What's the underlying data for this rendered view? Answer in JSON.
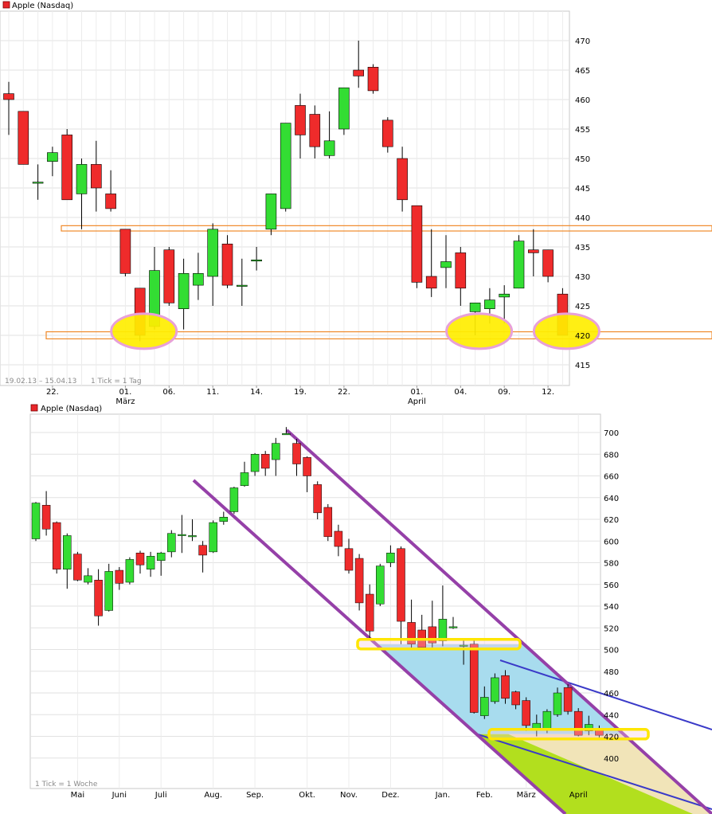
{
  "chart_data": [
    {
      "type": "candlestick",
      "legend": {
        "label": "Apple (Nasdaq)",
        "color": "#e8262a"
      },
      "footer": {
        "range": "19.02.13 – 15.04.13",
        "tick": "1 Tick = 1 Tag"
      },
      "ylim": [
        414,
        473
      ],
      "yticks": [
        415,
        420,
        425,
        430,
        435,
        440,
        445,
        450,
        455,
        460,
        465,
        470
      ],
      "xtick_labels": [
        {
          "index": 3,
          "label": "22.",
          "sub": ""
        },
        {
          "index": 8,
          "label": "01.",
          "sub": "März"
        },
        {
          "index": 11,
          "label": "06.",
          "sub": ""
        },
        {
          "index": 14,
          "label": "11.",
          "sub": ""
        },
        {
          "index": 17,
          "label": "14.",
          "sub": ""
        },
        {
          "index": 20,
          "label": "19.",
          "sub": ""
        },
        {
          "index": 23,
          "label": "22.",
          "sub": ""
        },
        {
          "index": 28,
          "label": "01.",
          "sub": "April"
        },
        {
          "index": 31,
          "label": "04.",
          "sub": ""
        },
        {
          "index": 34,
          "label": "09.",
          "sub": ""
        },
        {
          "index": 37,
          "label": "12.",
          "sub": ""
        }
      ],
      "candles": [
        {
          "o": 461,
          "c": 460,
          "h": 463,
          "l": 454
        },
        {
          "o": 458,
          "c": 449,
          "h": 458,
          "l": 449
        },
        {
          "o": 446,
          "c": 446,
          "h": 449,
          "l": 443
        },
        {
          "o": 449.5,
          "c": 451,
          "h": 452,
          "l": 447
        },
        {
          "o": 454,
          "c": 443,
          "h": 455,
          "l": 443
        },
        {
          "o": 444,
          "c": 449,
          "h": 450,
          "l": 438
        },
        {
          "o": 449,
          "c": 445,
          "h": 453,
          "l": 441
        },
        {
          "o": 444,
          "c": 441.5,
          "h": 448,
          "l": 441
        },
        {
          "o": 438,
          "c": 430.5,
          "h": 438,
          "l": 430
        },
        {
          "o": 428,
          "c": 420,
          "h": 428,
          "l": 419
        },
        {
          "o": 421.5,
          "c": 431,
          "h": 435,
          "l": 421
        },
        {
          "o": 434.5,
          "c": 425.5,
          "h": 435,
          "l": 425
        },
        {
          "o": 424.5,
          "c": 430.5,
          "h": 433,
          "l": 421
        },
        {
          "o": 428.5,
          "c": 430.5,
          "h": 434,
          "l": 426
        },
        {
          "o": 430,
          "c": 438,
          "h": 439,
          "l": 425
        },
        {
          "o": 435.5,
          "c": 428.5,
          "h": 437,
          "l": 428
        },
        {
          "o": 428.5,
          "c": 428.5,
          "h": 433,
          "l": 425
        },
        {
          "o": 432.8,
          "c": 432.8,
          "h": 435,
          "l": 431
        },
        {
          "o": 438,
          "c": 444,
          "h": 444,
          "l": 437
        },
        {
          "o": 441.5,
          "c": 456,
          "h": 456,
          "l": 441
        },
        {
          "o": 459,
          "c": 454,
          "h": 461,
          "l": 450
        },
        {
          "o": 457.5,
          "c": 452,
          "h": 459,
          "l": 450
        },
        {
          "o": 450.5,
          "c": 453,
          "h": 458,
          "l": 450
        },
        {
          "o": 455,
          "c": 462,
          "h": 462,
          "l": 454
        },
        {
          "o": 465,
          "c": 464,
          "h": 470,
          "l": 462
        },
        {
          "o": 465.5,
          "c": 461.5,
          "h": 466,
          "l": 461
        },
        {
          "o": 456.5,
          "c": 452,
          "h": 457,
          "l": 451
        },
        {
          "o": 450,
          "c": 443,
          "h": 452,
          "l": 441
        },
        {
          "o": 442,
          "c": 429,
          "h": 442,
          "l": 428
        },
        {
          "o": 430,
          "c": 428,
          "h": 438,
          "l": 426.5
        },
        {
          "o": 431.5,
          "c": 432.5,
          "h": 437,
          "l": 428
        },
        {
          "o": 434,
          "c": 428,
          "h": 435,
          "l": 425
        },
        {
          "o": 424,
          "c": 425.5,
          "h": 425.5,
          "l": 420
        },
        {
          "o": 424.5,
          "c": 426,
          "h": 428,
          "l": 422
        },
        {
          "o": 426.5,
          "c": 427,
          "h": 428.5,
          "l": 422
        },
        {
          "o": 428,
          "c": 436,
          "h": 437,
          "l": 428
        },
        {
          "o": 434.5,
          "c": 434,
          "h": 438,
          "l": 430
        },
        {
          "o": 434.5,
          "c": 430,
          "h": 434.5,
          "l": 429
        },
        {
          "o": 427,
          "c": 420,
          "h": 428,
          "l": 420
        }
      ],
      "resistance_zone": [
        437.7,
        438.6
      ],
      "support_zone": [
        419.4,
        420.6
      ],
      "highlight_circles": [
        {
          "index": 9,
          "value": 420.7
        },
        {
          "index": 32,
          "value": 420.7
        },
        {
          "index": 38,
          "value": 420.7
        }
      ]
    },
    {
      "type": "candlestick",
      "legend": {
        "label": "Apple (Nasdaq)",
        "color": "#e8262a"
      },
      "footer": {
        "range": "",
        "tick": "1 Tick = 1 Woche"
      },
      "ylim": [
        383,
        710
      ],
      "yticks": [
        400,
        420,
        440,
        460,
        480,
        500,
        520,
        540,
        560,
        580,
        600,
        620,
        640,
        660,
        680,
        700
      ],
      "xtick_labels": [
        {
          "index": 4,
          "label": "Mai"
        },
        {
          "index": 8,
          "label": "Juni"
        },
        {
          "index": 12,
          "label": "Juli"
        },
        {
          "index": 17,
          "label": "Aug."
        },
        {
          "index": 21,
          "label": "Sep."
        },
        {
          "index": 26,
          "label": "Okt."
        },
        {
          "index": 30,
          "label": "Nov."
        },
        {
          "index": 34,
          "label": "Dez."
        },
        {
          "index": 39,
          "label": "Jan."
        },
        {
          "index": 43,
          "label": "Feb."
        },
        {
          "index": 47,
          "label": "März"
        },
        {
          "index": 52,
          "label": "April"
        }
      ],
      "candles": [
        {
          "o": 602,
          "c": 635,
          "h": 636,
          "l": 600
        },
        {
          "o": 633,
          "c": 611,
          "h": 646,
          "l": 605
        },
        {
          "o": 617,
          "c": 574,
          "h": 618,
          "l": 570
        },
        {
          "o": 574,
          "c": 605,
          "h": 607,
          "l": 556
        },
        {
          "o": 588,
          "c": 564,
          "h": 590,
          "l": 563
        },
        {
          "o": 562,
          "c": 568,
          "h": 575,
          "l": 560
        },
        {
          "o": 564,
          "c": 531,
          "h": 574,
          "l": 522
        },
        {
          "o": 536,
          "c": 572,
          "h": 579,
          "l": 535
        },
        {
          "o": 573,
          "c": 561,
          "h": 576,
          "l": 555
        },
        {
          "o": 562,
          "c": 583,
          "h": 585,
          "l": 560
        },
        {
          "o": 589,
          "c": 578,
          "h": 591,
          "l": 570
        },
        {
          "o": 574,
          "c": 586,
          "h": 590,
          "l": 567
        },
        {
          "o": 582,
          "c": 589,
          "h": 590,
          "l": 568
        },
        {
          "o": 590,
          "c": 607,
          "h": 610,
          "l": 585
        },
        {
          "o": 606,
          "c": 606,
          "h": 624,
          "l": 589
        },
        {
          "o": 605,
          "c": 605,
          "h": 620,
          "l": 600
        },
        {
          "o": 596,
          "c": 587,
          "h": 600,
          "l": 571
        },
        {
          "o": 590,
          "c": 617,
          "h": 619,
          "l": 589
        },
        {
          "o": 618,
          "c": 622,
          "h": 627,
          "l": 615
        },
        {
          "o": 627,
          "c": 649,
          "h": 650,
          "l": 625
        },
        {
          "o": 651,
          "c": 663,
          "h": 673,
          "l": 650
        },
        {
          "o": 664,
          "c": 680,
          "h": 681,
          "l": 660
        },
        {
          "o": 680,
          "c": 667,
          "h": 683,
          "l": 660
        },
        {
          "o": 675,
          "c": 690,
          "h": 695,
          "l": 660
        },
        {
          "o": 699,
          "c": 699,
          "h": 705,
          "l": 698
        },
        {
          "o": 690,
          "c": 671,
          "h": 694,
          "l": 660
        },
        {
          "o": 677,
          "c": 660,
          "h": 678,
          "l": 645
        },
        {
          "o": 652,
          "c": 626,
          "h": 655,
          "l": 620
        },
        {
          "o": 631,
          "c": 604,
          "h": 634,
          "l": 600
        },
        {
          "o": 609,
          "c": 595,
          "h": 615,
          "l": 586
        },
        {
          "o": 593,
          "c": 573,
          "h": 602,
          "l": 570
        },
        {
          "o": 584,
          "c": 543,
          "h": 588,
          "l": 536
        },
        {
          "o": 551,
          "c": 517,
          "h": 560,
          "l": 510
        },
        {
          "o": 542,
          "c": 577,
          "h": 579,
          "l": 540
        },
        {
          "o": 580,
          "c": 589,
          "h": 596,
          "l": 576
        },
        {
          "o": 593,
          "c": 526,
          "h": 595,
          "l": 505
        },
        {
          "o": 525,
          "c": 505,
          "h": 546,
          "l": 500
        },
        {
          "o": 518,
          "c": 502,
          "h": 532,
          "l": 500
        },
        {
          "o": 521,
          "c": 506,
          "h": 545,
          "l": 502
        },
        {
          "o": 508,
          "c": 528,
          "h": 559,
          "l": 503
        },
        {
          "o": 521,
          "c": 521,
          "h": 530,
          "l": 519
        },
        {
          "o": 504,
          "c": 504,
          "h": 510,
          "l": 486
        },
        {
          "o": 505,
          "c": 442,
          "h": 510,
          "l": 441
        },
        {
          "o": 439,
          "c": 456,
          "h": 466,
          "l": 436
        },
        {
          "o": 452,
          "c": 474,
          "h": 478,
          "l": 450
        },
        {
          "o": 476,
          "c": 455,
          "h": 481,
          "l": 450
        },
        {
          "o": 461,
          "c": 449,
          "h": 462,
          "l": 445
        },
        {
          "o": 453,
          "c": 430,
          "h": 456,
          "l": 425
        },
        {
          "o": 427,
          "c": 432,
          "h": 440,
          "l": 420
        },
        {
          "o": 427,
          "c": 443,
          "h": 445,
          "l": 423
        },
        {
          "o": 440,
          "c": 460,
          "h": 465,
          "l": 438
        },
        {
          "o": 465,
          "c": 443,
          "h": 468,
          "l": 440
        },
        {
          "o": 443,
          "c": 421,
          "h": 446,
          "l": 420
        },
        {
          "o": 425,
          "c": 431,
          "h": 439,
          "l": 421
        },
        {
          "o": 427,
          "c": 421,
          "h": 430,
          "l": 419
        }
      ]
    }
  ]
}
